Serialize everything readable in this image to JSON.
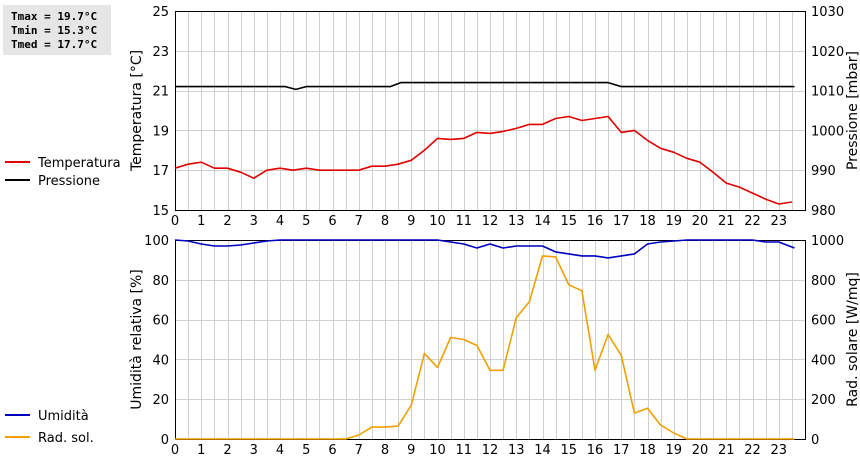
{
  "stats": {
    "tmax": "Tmax = 19.7°C",
    "tmin": "Tmin = 15.3°C",
    "tmed": "Tmed = 17.7°C"
  },
  "chart_data": [
    {
      "type": "line",
      "x_ticks": [
        0,
        1,
        2,
        3,
        4,
        5,
        6,
        7,
        8,
        9,
        10,
        11,
        12,
        13,
        14,
        15,
        16,
        17,
        18,
        19,
        20,
        21,
        22,
        23
      ],
      "xlim": [
        0,
        24
      ],
      "grid": true,
      "ylabel_left": "Temperatura [°C]",
      "ylabel_right": "Pressione [mbar]",
      "ylim_left": [
        15,
        25
      ],
      "ylim_right": [
        980,
        1030
      ],
      "yticks_left": [
        15,
        17,
        19,
        21,
        23,
        25
      ],
      "yticks_right": [
        980,
        990,
        1000,
        1010,
        1020,
        1030
      ],
      "series": [
        {
          "name": "Temperatura",
          "axis": "left",
          "color": "#e00000",
          "x": [
            0,
            0.5,
            1,
            1.5,
            2,
            2.5,
            3,
            3.5,
            4,
            4.5,
            5,
            5.5,
            6,
            6.5,
            7,
            7.5,
            8,
            8.5,
            9,
            9.5,
            10,
            10.5,
            11,
            11.5,
            12,
            12.5,
            13,
            13.5,
            14,
            14.5,
            15,
            15.5,
            16,
            16.5,
            17,
            17.5,
            18,
            18.5,
            19,
            19.5,
            20,
            20.5,
            21,
            21.5,
            22,
            22.5,
            23,
            23.5
          ],
          "y": [
            17.1,
            17.3,
            17.4,
            17.1,
            17.1,
            16.9,
            16.6,
            17.0,
            17.1,
            17.0,
            17.1,
            17.0,
            17.0,
            17.0,
            17.0,
            17.2,
            17.2,
            17.3,
            17.5,
            18.0,
            18.6,
            18.55,
            18.6,
            18.9,
            18.85,
            18.95,
            19.1,
            19.3,
            19.3,
            19.6,
            19.7,
            19.5,
            19.6,
            19.7,
            18.9,
            19.0,
            18.5,
            18.1,
            17.9,
            17.6,
            17.4,
            16.9,
            16.35,
            16.15,
            15.85,
            15.55,
            15.3,
            15.4
          ]
        },
        {
          "name": "Pressione",
          "axis": "right",
          "color": "#000000",
          "x": [
            0,
            4.2,
            4.6,
            5.0,
            8.2,
            8.6,
            16.5,
            17.0,
            23.6
          ],
          "y": [
            1011,
            1011,
            1010.3,
            1011,
            1011,
            1012,
            1012,
            1011,
            1011
          ]
        }
      ]
    },
    {
      "type": "line",
      "x_ticks": [
        0,
        1,
        2,
        3,
        4,
        5,
        6,
        7,
        8,
        9,
        10,
        11,
        12,
        13,
        14,
        15,
        16,
        17,
        18,
        19,
        20,
        21,
        22,
        23
      ],
      "xlim": [
        0,
        24
      ],
      "grid": true,
      "ylabel_left": "Umidità relativa [%]",
      "ylabel_right": "Rad. solare [W/mq]",
      "ylim_left": [
        0,
        100
      ],
      "ylim_right": [
        0,
        1000
      ],
      "yticks_left": [
        0,
        20,
        40,
        60,
        80,
        100
      ],
      "yticks_right": [
        0,
        200,
        400,
        600,
        800,
        1000
      ],
      "series": [
        {
          "name": "Umidità",
          "axis": "left",
          "color": "#0000c0",
          "x": [
            0,
            0.5,
            1,
            1.5,
            2,
            2.5,
            3,
            3.5,
            4,
            9,
            9.5,
            10,
            10.5,
            11,
            11.5,
            12,
            12.5,
            13,
            13.5,
            14,
            14.5,
            15,
            15.5,
            16,
            16.5,
            17,
            17.5,
            18,
            18.5,
            19,
            19.5,
            20,
            22,
            22.5,
            23,
            23.6
          ],
          "y": [
            100,
            99.5,
            98,
            97,
            97,
            97.5,
            98.5,
            99.5,
            100,
            100,
            100,
            100,
            99,
            98,
            96,
            98,
            96,
            97,
            97,
            97,
            94,
            93,
            92,
            92,
            91,
            92,
            93,
            98,
            99,
            99.5,
            100,
            100,
            100,
            99,
            99,
            96
          ]
        },
        {
          "name": "Rad. sol.",
          "axis": "right",
          "color": "#f0a000",
          "x": [
            0,
            6.5,
            7,
            7.5,
            8,
            8.5,
            9,
            9.5,
            10,
            10.5,
            11,
            11.5,
            12,
            12.5,
            13,
            13.5,
            14,
            14.5,
            15,
            15.5,
            16,
            16.5,
            17,
            17.5,
            18,
            18.5,
            19,
            19.5,
            20,
            23.6
          ],
          "y": [
            0,
            0,
            20,
            60,
            60,
            65,
            170,
            430,
            360,
            510,
            500,
            470,
            345,
            345,
            610,
            690,
            920,
            915,
            775,
            745,
            345,
            525,
            420,
            130,
            155,
            70,
            30,
            0,
            0,
            0
          ]
        }
      ]
    }
  ]
}
